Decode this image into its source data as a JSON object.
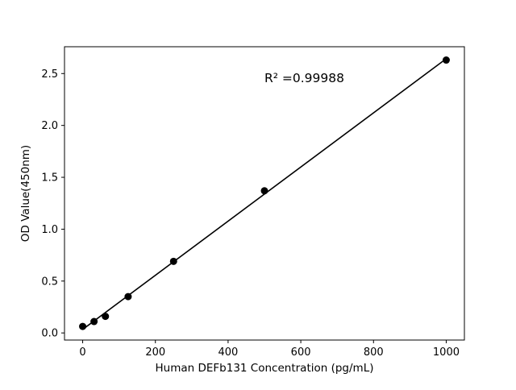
{
  "chart_data": {
    "type": "scatter",
    "title": "",
    "xlabel": "Human DEFb131 Concentration (pg/mL)",
    "ylabel": "OD Value(450nm)",
    "annotation": "R² =0.99988",
    "x": [
      0,
      31.25,
      62.5,
      125,
      250,
      500,
      1000
    ],
    "y": [
      0.063,
      0.11,
      0.16,
      0.35,
      0.69,
      1.37,
      2.63
    ],
    "fit_line": {
      "slope": 0.002609,
      "intercept": 0.034
    },
    "xlim": [
      -50,
      1050
    ],
    "ylim": [
      -0.0685,
      2.7585
    ],
    "xticks": [
      0,
      200,
      400,
      600,
      800,
      1000
    ],
    "yticks": [
      0.0,
      0.5,
      1.0,
      1.5,
      2.0,
      2.5
    ],
    "grid": false,
    "legend": null,
    "marker_color": "#000000",
    "line_color": "#000000",
    "background": "#ffffff"
  }
}
